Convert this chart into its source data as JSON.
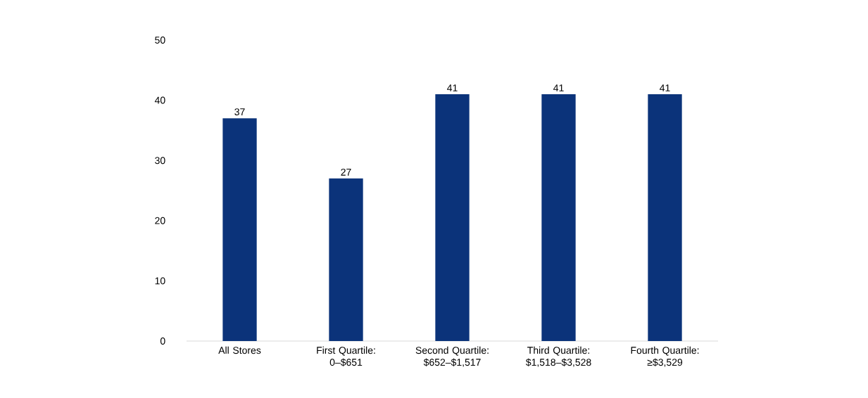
{
  "chart_data": {
    "type": "bar",
    "categories": [
      "All Stores",
      "First Quartile: 0–$651",
      "Second Quartile: $652–$1,517",
      "Third Quartile: $1,518–$3,528",
      "Fourth Quartile: ≥$3,529"
    ],
    "values": [
      37,
      27,
      41,
      41,
      41
    ],
    "color": "#0b337a",
    "ylim": [
      0,
      50
    ],
    "yticks": [
      0,
      10,
      20,
      30,
      40,
      50
    ],
    "data_labels": true
  }
}
